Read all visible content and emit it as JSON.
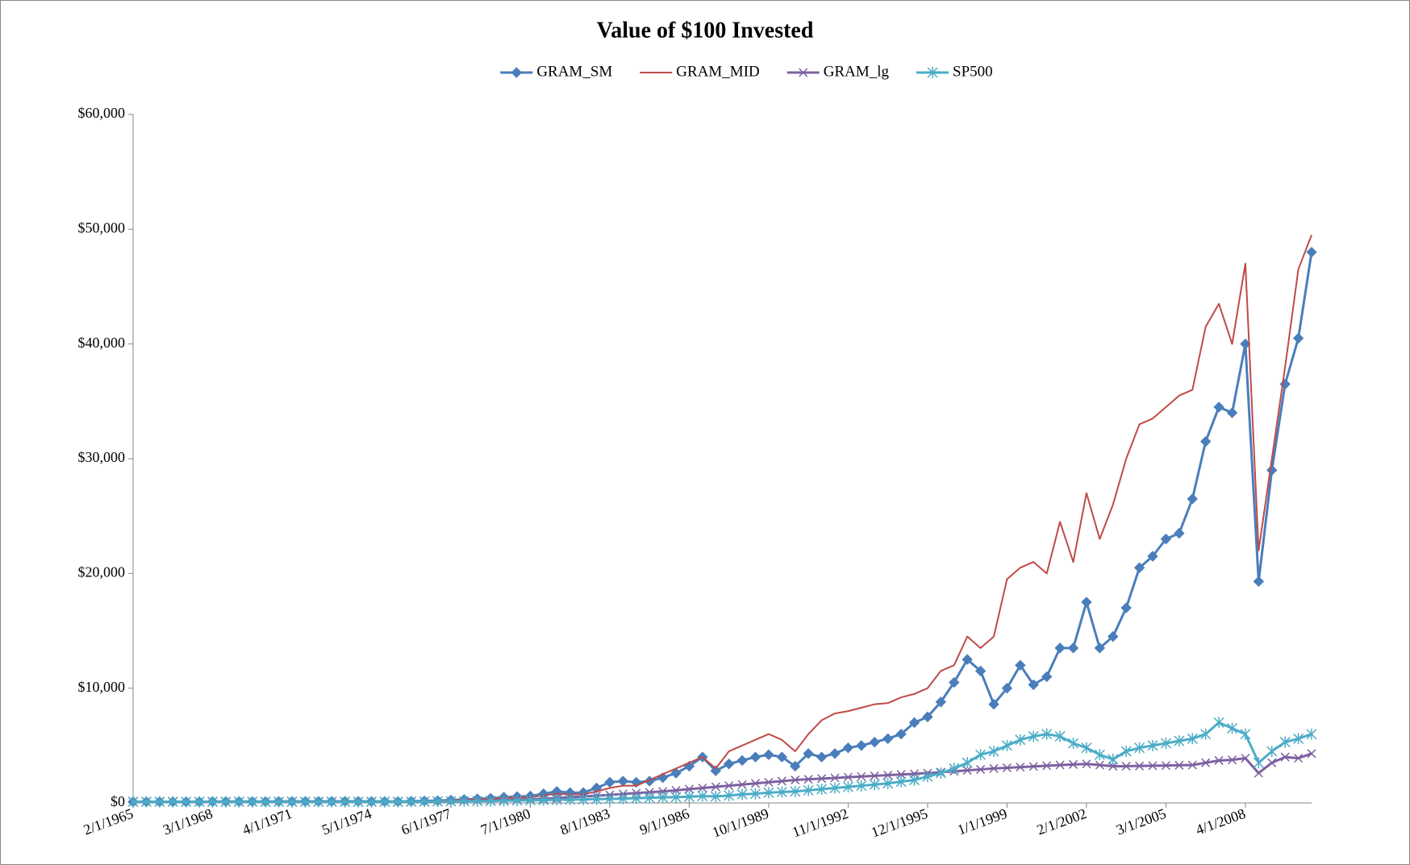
{
  "chart_data": {
    "type": "line",
    "title": "Value of $100 Invested",
    "categories": [
      "2/1/1965",
      null,
      null,
      null,
      null,
      null,
      "3/1/1968",
      null,
      null,
      null,
      null,
      null,
      "4/1/1971",
      null,
      null,
      null,
      null,
      null,
      "5/1/1974",
      null,
      null,
      null,
      null,
      null,
      "6/1/1977",
      null,
      null,
      null,
      null,
      null,
      "7/1/1980",
      null,
      null,
      null,
      null,
      null,
      "8/1/1983",
      null,
      null,
      null,
      null,
      null,
      "9/1/1986",
      null,
      null,
      null,
      null,
      null,
      "10/1/1989",
      null,
      null,
      null,
      null,
      null,
      "11/1/1992",
      null,
      null,
      null,
      null,
      null,
      "12/1/1995",
      null,
      null,
      null,
      null,
      null,
      "1/1/1999",
      null,
      null,
      null,
      null,
      null,
      "2/1/2002",
      null,
      null,
      null,
      null,
      null,
      "3/1/2005",
      null,
      null,
      null,
      null,
      null,
      "4/1/2008",
      null,
      null,
      null,
      null,
      null
    ],
    "series": [
      {
        "name": "GRAM_SM",
        "color": "#4a7ebb",
        "marker": "diamond",
        "values": [
          100,
          100,
          100,
          100,
          100,
          100,
          120,
          120,
          120,
          120,
          120,
          130,
          130,
          130,
          140,
          140,
          140,
          140,
          130,
          120,
          120,
          150,
          180,
          200,
          250,
          300,
          350,
          400,
          500,
          550,
          600,
          800,
          1000,
          900,
          900,
          1300,
          1800,
          1900,
          1800,
          1900,
          2200,
          2600,
          3200,
          4000,
          2800,
          3400,
          3700,
          4000,
          4200,
          4000,
          3200,
          4300,
          4000,
          4300,
          4800,
          5000,
          5300,
          5600,
          6000,
          7000,
          7500,
          8800,
          10500,
          12500,
          11500,
          8600,
          10000,
          12000,
          10300,
          11000,
          13500,
          13500,
          17500,
          13500,
          14500,
          17000,
          20500,
          21500,
          23000,
          23500,
          26500,
          31500,
          34500,
          34000,
          40000,
          19300,
          29000,
          36500,
          40500,
          48000
        ]
      },
      {
        "name": "GRAM_MID",
        "color": "#be4b48",
        "marker": "none",
        "values": [
          100,
          100,
          100,
          100,
          100,
          100,
          110,
          110,
          110,
          110,
          110,
          120,
          120,
          120,
          120,
          120,
          120,
          120,
          110,
          110,
          110,
          130,
          150,
          180,
          220,
          260,
          300,
          350,
          420,
          470,
          500,
          650,
          800,
          750,
          750,
          1000,
          1300,
          1500,
          1500,
          2000,
          2500,
          3000,
          3500,
          4000,
          3000,
          4500,
          5000,
          5500,
          6000,
          5500,
          4500,
          6000,
          7200,
          7800,
          8000,
          8300,
          8600,
          8700,
          9200,
          9500,
          10000,
          11500,
          12000,
          14500,
          13500,
          14500,
          19500,
          20500,
          21000,
          20000,
          24500,
          21000,
          27000,
          23000,
          26000,
          30000,
          33000,
          33500,
          34500,
          35500,
          36000,
          41500,
          43500,
          40000,
          47000,
          22000,
          30000,
          38000,
          46500,
          49500
        ]
      },
      {
        "name": "GRAM_lg",
        "color": "#7d60a0",
        "marker": "x",
        "values": [
          100,
          100,
          100,
          100,
          100,
          100,
          100,
          100,
          100,
          100,
          100,
          110,
          110,
          110,
          110,
          110,
          110,
          110,
          100,
          100,
          100,
          110,
          120,
          130,
          150,
          170,
          190,
          210,
          250,
          300,
          320,
          360,
          420,
          500,
          550,
          620,
          700,
          780,
          860,
          930,
          1000,
          1100,
          1200,
          1300,
          1400,
          1500,
          1600,
          1700,
          1800,
          1900,
          2000,
          2060,
          2120,
          2180,
          2240,
          2300,
          2360,
          2420,
          2480,
          2540,
          2600,
          2680,
          2760,
          2840,
          2920,
          3000,
          3060,
          3120,
          3180,
          3240,
          3300,
          3350,
          3400,
          3300,
          3200,
          3200,
          3220,
          3240,
          3260,
          3280,
          3300,
          3500,
          3700,
          3750,
          3900,
          2600,
          3500,
          4000,
          3900,
          4300
        ]
      },
      {
        "name": "SP500",
        "color": "#4bacc6",
        "marker": "star",
        "values": [
          100,
          100,
          100,
          100,
          100,
          100,
          100,
          100,
          100,
          100,
          100,
          100,
          100,
          100,
          100,
          100,
          100,
          100,
          100,
          100,
          100,
          110,
          120,
          130,
          140,
          150,
          160,
          170,
          190,
          210,
          230,
          250,
          270,
          290,
          310,
          330,
          350,
          380,
          410,
          450,
          480,
          500,
          540,
          600,
          560,
          650,
          750,
          800,
          900,
          950,
          1000,
          1100,
          1200,
          1300,
          1400,
          1500,
          1600,
          1700,
          1850,
          2000,
          2300,
          2600,
          3000,
          3500,
          4200,
          4500,
          5000,
          5500,
          5800,
          6000,
          5800,
          5200,
          4800,
          4200,
          3800,
          4500,
          4800,
          5000,
          5200,
          5400,
          5600,
          6000,
          7000,
          6500,
          6000,
          3500,
          4500,
          5300,
          5600,
          6000
        ]
      }
    ],
    "ylim": [
      0,
      60000
    ],
    "yticks": [
      {
        "value": 0,
        "label": "$0"
      },
      {
        "value": 10000,
        "label": "$10,000"
      },
      {
        "value": 20000,
        "label": "$20,000"
      },
      {
        "value": 30000,
        "label": "$30,000"
      },
      {
        "value": 40000,
        "label": "$40,000"
      },
      {
        "value": 50000,
        "label": "$50,000"
      },
      {
        "value": 60000,
        "label": "$60,000"
      }
    ],
    "grid": false,
    "legend": "top"
  }
}
